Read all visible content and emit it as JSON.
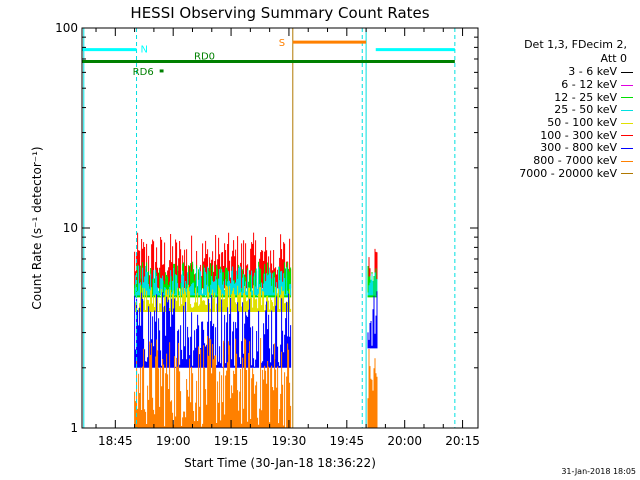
{
  "chart_data": {
    "type": "line",
    "title": "HESSI Observing Summary Count Rates",
    "xlabel": "Start Time (30-Jan-18 18:36:22)",
    "ylabel": "Count Rate (s⁻¹ detector⁻¹)",
    "y_scale": "log",
    "ylim": [
      1,
      100
    ],
    "xlim": [
      "18:36:22",
      "20:19:00"
    ],
    "x_ticks": [
      "18:45",
      "19:00",
      "19:15",
      "19:30",
      "19:45",
      "20:00",
      "20:15"
    ],
    "y_ticks": [
      "1",
      "10",
      "100"
    ],
    "grid": false,
    "legend": {
      "placement": "right",
      "header_line1": "Det 1,3, FDecim 2,",
      "header_line2": "Att 0",
      "entries": [
        {
          "label": "3 - 6 keV",
          "color": "#000000"
        },
        {
          "label": "6 - 12 keV",
          "color": "#e000e0"
        },
        {
          "label": "12 - 25 keV",
          "color": "#00e000"
        },
        {
          "label": "25 - 50 keV",
          "color": "#00e0e0"
        },
        {
          "label": "50 - 100 keV",
          "color": "#e0e000"
        },
        {
          "label": "100 - 300 keV",
          "color": "#ff0000"
        },
        {
          "label": "300 - 800 keV",
          "color": "#0000ff"
        },
        {
          "label": "800 - 7000 keV",
          "color": "#ff8000"
        },
        {
          "label": "7000 - 20000 keV",
          "color": "#b07800"
        }
      ]
    },
    "series": [
      {
        "name": "100 - 300 keV",
        "color": "#ff0000",
        "segments": [
          {
            "start": "18:50:00",
            "end": "19:30:30",
            "low": 5.0,
            "high": 9.5
          },
          {
            "start": "19:50:30",
            "end": "19:53:00",
            "low": 5.0,
            "high": 9.0
          }
        ]
      },
      {
        "name": "12 - 25 keV",
        "color": "#00e000",
        "segments": [
          {
            "start": "18:50:00",
            "end": "19:30:30",
            "low": 4.5,
            "high": 6.8
          },
          {
            "start": "19:50:30",
            "end": "19:53:00",
            "low": 4.5,
            "high": 6.5
          }
        ]
      },
      {
        "name": "25 - 50 keV",
        "color": "#00e0e0",
        "segments": [
          {
            "start": "18:50:00",
            "end": "19:30:30",
            "low": 4.6,
            "high": 6.5
          },
          {
            "start": "19:50:30",
            "end": "19:53:00",
            "low": 4.6,
            "high": 6.3
          }
        ]
      },
      {
        "name": "50 - 100 keV",
        "color": "#e0e000",
        "segments": [
          {
            "start": "18:50:00",
            "end": "19:30:30",
            "low": 3.8,
            "high": 5.2
          }
        ]
      },
      {
        "name": "300 - 800 keV",
        "color": "#0000ff",
        "segments": [
          {
            "start": "18:50:00",
            "end": "19:30:30",
            "low": 2.0,
            "high": 4.9
          },
          {
            "start": "19:50:30",
            "end": "19:53:00",
            "low": 2.5,
            "high": 4.9
          }
        ]
      },
      {
        "name": "800 - 7000 keV",
        "color": "#ff8000",
        "segments": [
          {
            "start": "18:50:00",
            "end": "19:30:30",
            "low": 1.0,
            "high": 2.9
          },
          {
            "start": "19:50:30",
            "end": "19:53:00",
            "low": 1.0,
            "high": 2.9
          }
        ]
      }
    ],
    "flags": [
      {
        "label": "N",
        "color": "#00ffff",
        "value": 78,
        "spans": [
          [
            "18:36:22",
            "18:50:30"
          ],
          [
            "19:52:30",
            "20:13:00"
          ]
        ]
      },
      {
        "label": "S",
        "color": "#ff8000",
        "value": 85,
        "spans": [
          [
            "19:31:00",
            "19:50:00"
          ]
        ]
      },
      {
        "label": "RD0",
        "color": "#008000",
        "value": 68,
        "spans": [
          [
            "18:36:22",
            "20:13:00"
          ]
        ]
      },
      {
        "label": "RD6",
        "color": "#008000",
        "value": 61,
        "spans": [
          [
            "18:56:30",
            "18:57:30"
          ]
        ]
      }
    ],
    "vertical_markers": [
      {
        "time": "18:36:50",
        "color": "#00e0e0",
        "style": "solid"
      },
      {
        "time": "18:50:30",
        "color": "#00e0e0",
        "style": "dashed"
      },
      {
        "time": "19:31:00",
        "color": "#b07800",
        "style": "solid"
      },
      {
        "time": "19:49:00",
        "color": "#00e0e0",
        "style": "dashed"
      },
      {
        "time": "19:50:00",
        "color": "#00e0e0",
        "style": "solid"
      },
      {
        "time": "20:13:00",
        "color": "#00e0e0",
        "style": "dashed"
      }
    ]
  },
  "footer": {
    "stamp": "31-Jan-2018 18:05"
  }
}
